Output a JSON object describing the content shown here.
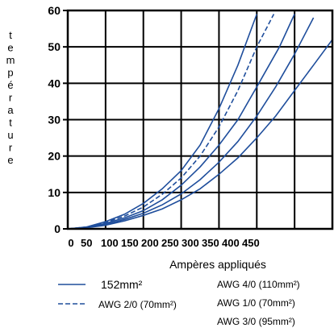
{
  "chart_data": {
    "type": "line",
    "xlabel": "Ampères appliqués",
    "ylabel": "température",
    "xlim": [
      0,
      700
    ],
    "ylim": [
      0,
      60
    ],
    "grid": true,
    "x_ticks": [
      "0",
      "50",
      "100",
      "150",
      "200",
      "250",
      "300",
      "350",
      "400",
      "450"
    ],
    "y_ticks": [
      "0",
      "10",
      "20",
      "30",
      "40",
      "50",
      "60"
    ],
    "series": [
      {
        "name": "152mm²",
        "style": "solid",
        "color": "#1f4e9c",
        "x": [
          0,
          50,
          100,
          150,
          200,
          250,
          300,
          350,
          400,
          450,
          500
        ],
        "y": [
          0,
          0.5,
          2,
          4,
          7,
          11,
          16,
          23,
          33,
          45,
          59
        ]
      },
      {
        "name": "AWG 2/0 (70mm²)",
        "style": "dashed",
        "color": "#1f4e9c",
        "x": [
          0,
          50,
          100,
          150,
          200,
          250,
          300,
          350,
          400,
          450,
          500,
          545
        ],
        "y": [
          0,
          0.5,
          1.8,
          3.5,
          6,
          9.5,
          14,
          20,
          28,
          38,
          50,
          59
        ]
      },
      {
        "name": "AWG 4/0 (110mm²)",
        "style": "solid",
        "color": "#1f4e9c",
        "x": [
          0,
          50,
          100,
          150,
          200,
          250,
          300,
          350,
          400,
          450,
          500,
          560,
          600
        ],
        "y": [
          0,
          0.4,
          1.5,
          3,
          5,
          8,
          12,
          17,
          23,
          30,
          39,
          50,
          59
        ]
      },
      {
        "name": "AWG 1/0 (70mm²)",
        "style": "solid",
        "color": "#1f4e9c",
        "x": [
          0,
          50,
          100,
          150,
          200,
          250,
          300,
          350,
          400,
          450,
          500,
          550,
          600,
          650
        ],
        "y": [
          0,
          0.3,
          1.2,
          2.6,
          4.3,
          6.6,
          9.6,
          13.5,
          18.3,
          24,
          31,
          39,
          48,
          58
        ]
      },
      {
        "name": "AWG 3/0 (95mm²)",
        "style": "solid",
        "color": "#1f4e9c",
        "x": [
          0,
          50,
          100,
          150,
          200,
          250,
          300,
          350,
          400,
          450,
          500,
          550,
          600,
          650,
          700
        ],
        "y": [
          0,
          0.3,
          1,
          2.2,
          3.7,
          5.5,
          8,
          11,
          15,
          19.5,
          25,
          31,
          38,
          45,
          52
        ]
      }
    ]
  }
}
